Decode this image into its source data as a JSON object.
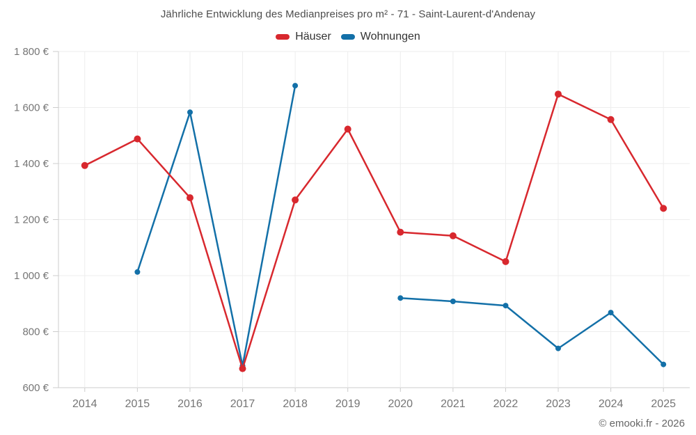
{
  "title": "Jährliche Entwicklung des Medianpreises pro m² - 71 - Saint-Laurent-d'Andenay",
  "footer": "© emooki.fr - 2026",
  "colors": {
    "hauser_red": "#d8282e",
    "wohnungen_blue": "#1370a8",
    "grid": "#ededed",
    "axis": "#cccccc",
    "tick_text": "#757575",
    "title_text": "#4d4d4d"
  },
  "chart_data": {
    "type": "line",
    "title": "Jährliche Entwicklung des Medianpreises pro m² - 71 - Saint-Laurent-d'Andenay",
    "categories": [
      "2014",
      "2015",
      "2016",
      "2017",
      "2018",
      "2019",
      "2020",
      "2021",
      "2022",
      "2023",
      "2024",
      "2025"
    ],
    "series": [
      {
        "name": "Häuser",
        "color": "#d8282e",
        "marker_radius": 5,
        "values": [
          1393,
          1488,
          1278,
          668,
          1270,
          1523,
          1155,
          1142,
          1050,
          1648,
          1557,
          1240
        ]
      },
      {
        "name": "Wohnungen",
        "color": "#1370a8",
        "marker_radius": 4,
        "values": [
          null,
          1013,
          1583,
          678,
          1678,
          null,
          920,
          908,
          893,
          740,
          868,
          683
        ]
      }
    ],
    "ylim": [
      600,
      1800
    ],
    "ytick_step": 200,
    "ytick_labels": [
      "600 €",
      "800 €",
      "1 000 €",
      "1 200 €",
      "1 400 €",
      "1 600 €",
      "1 800 €"
    ],
    "ylabel": "",
    "xlabel": "",
    "grid": true,
    "legend_position": "top-center"
  }
}
